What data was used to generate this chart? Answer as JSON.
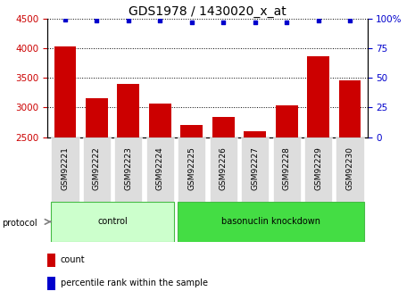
{
  "title": "GDS1978 / 1430020_x_at",
  "samples": [
    "GSM92221",
    "GSM92222",
    "GSM92223",
    "GSM92224",
    "GSM92225",
    "GSM92226",
    "GSM92227",
    "GSM92228",
    "GSM92229",
    "GSM92230"
  ],
  "counts": [
    4030,
    3160,
    3390,
    3060,
    2700,
    2840,
    2595,
    3040,
    3860,
    3460
  ],
  "percentile_ranks": [
    99,
    98,
    98,
    98,
    97,
    97,
    97,
    97,
    98,
    98
  ],
  "ylim_left": [
    2500,
    4500
  ],
  "ylim_right": [
    0,
    100
  ],
  "yticks_left": [
    2500,
    3000,
    3500,
    4000,
    4500
  ],
  "yticks_right": [
    0,
    25,
    50,
    75,
    100
  ],
  "yticklabels_right": [
    "0",
    "25",
    "50",
    "75",
    "100%"
  ],
  "bar_color": "#cc0000",
  "dot_color": "#0000cc",
  "grid_color": "#000000",
  "title_fontsize": 10,
  "tick_fontsize": 7.5,
  "label_fontsize": 6.5,
  "protocol_fontsize": 7,
  "legend_fontsize": 7,
  "ctrl_color": "#ccffcc",
  "bk_color": "#44dd44",
  "ctrl_edge": "#44bb44",
  "bk_edge": "#44bb44",
  "sample_box_color": "#dddddd",
  "legend_items": [
    {
      "label": "count",
      "color": "#cc0000",
      "marker": "s"
    },
    {
      "label": "percentile rank within the sample",
      "color": "#0000cc",
      "marker": "s"
    }
  ]
}
